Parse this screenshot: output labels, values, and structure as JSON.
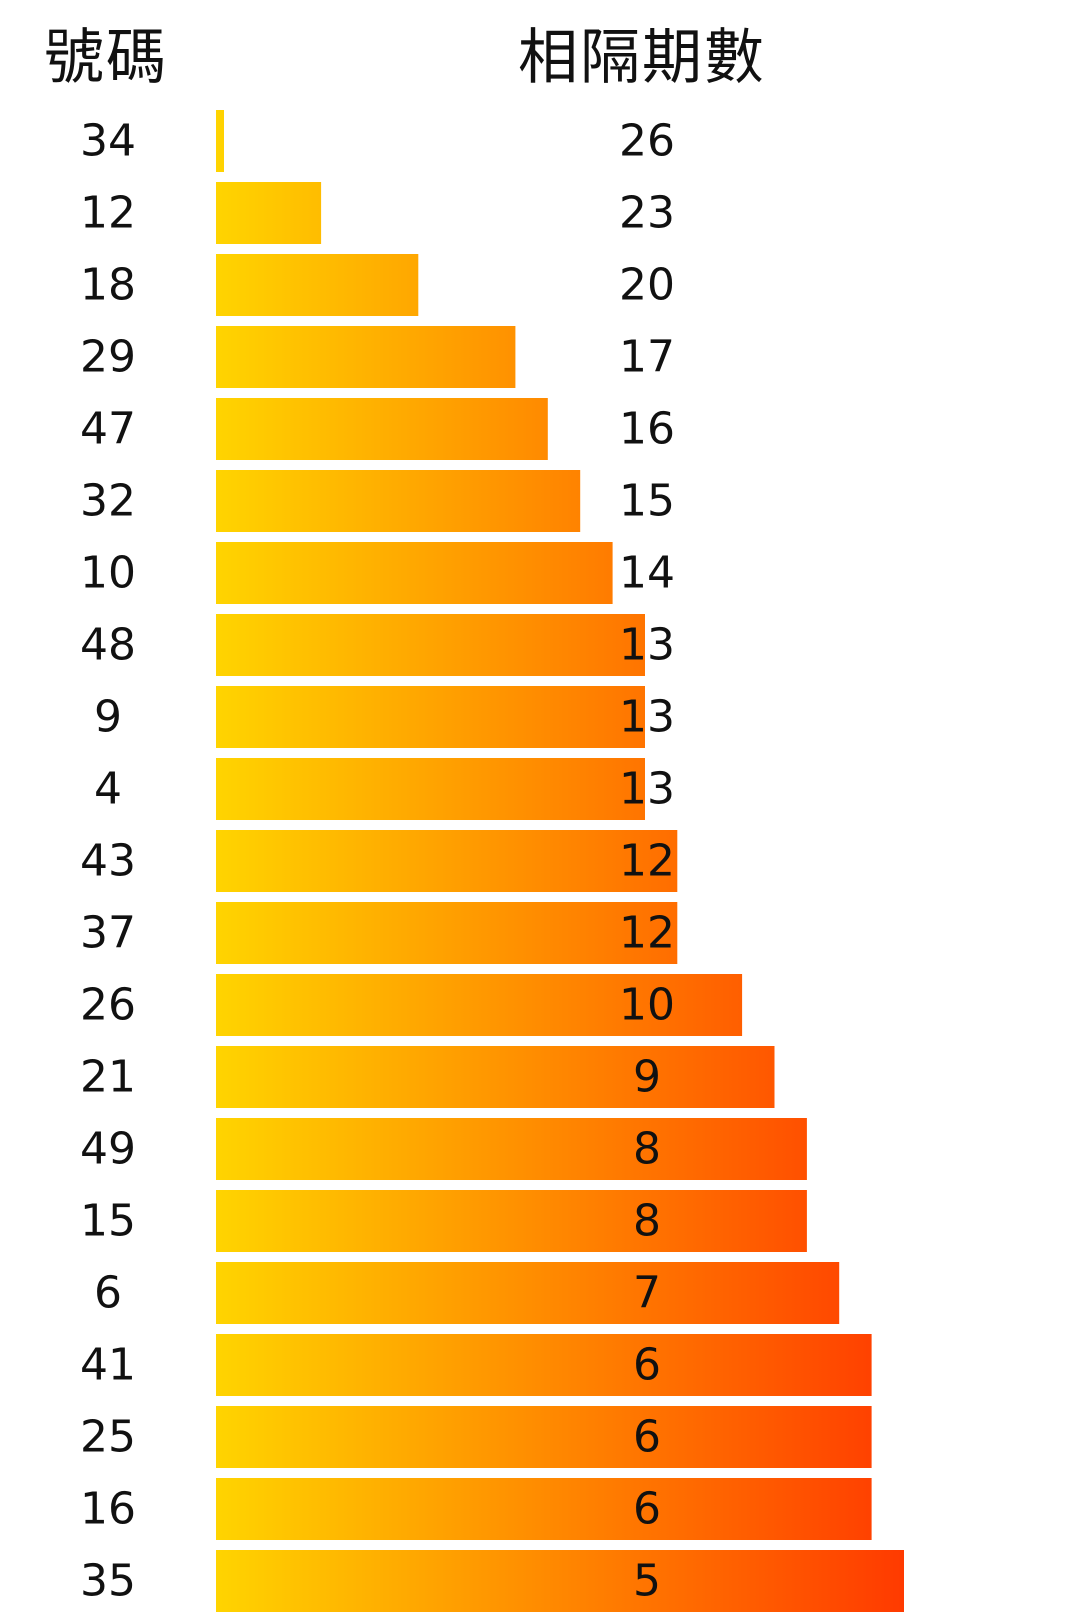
{
  "header": {
    "number_label": "號碼",
    "gap_label": "相隔期數"
  },
  "chart_data": {
    "type": "bar",
    "orientation": "horizontal",
    "categories": [
      "34",
      "12",
      "18",
      "29",
      "47",
      "32",
      "10",
      "48",
      "9",
      "4",
      "43",
      "37",
      "26",
      "21",
      "49",
      "15",
      "6",
      "41",
      "25",
      "16",
      "35"
    ],
    "values": [
      26,
      23,
      20,
      17,
      16,
      15,
      14,
      13,
      13,
      13,
      12,
      12,
      10,
      9,
      8,
      8,
      7,
      6,
      6,
      6,
      5
    ],
    "bar_length_order": "inverse",
    "colors": {
      "gradient_start": "#ffd400",
      "gradient_end": "#ff3a00",
      "text": "#111111",
      "background": "#ffffff"
    },
    "grid": false,
    "legend": "none"
  }
}
